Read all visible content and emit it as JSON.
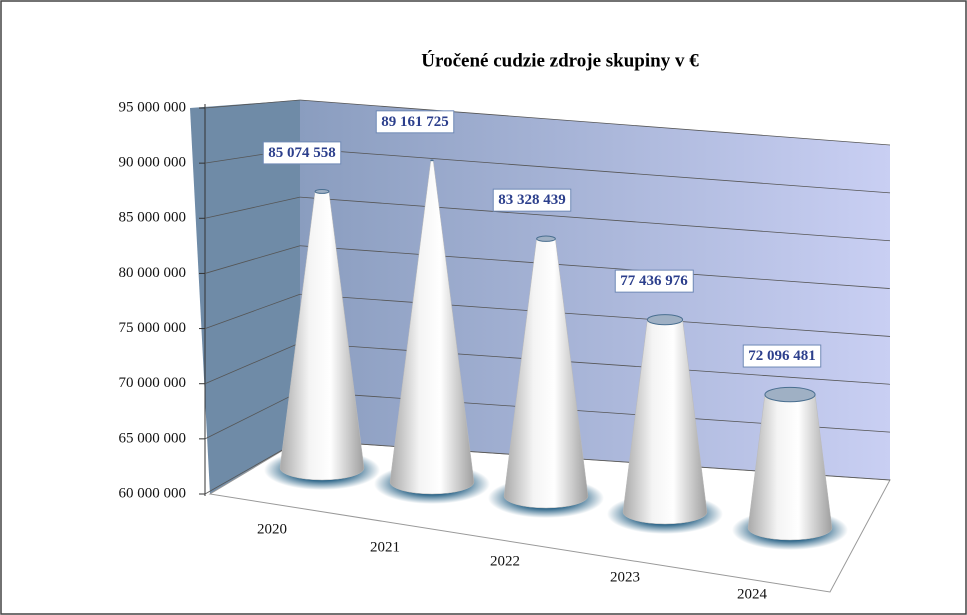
{
  "chart_data": {
    "type": "bar",
    "title": "Úročené cudzie zdroje skupiny  v €",
    "categories": [
      "2020",
      "2021",
      "2022",
      "2023",
      "2024"
    ],
    "values": [
      85074558,
      89161725,
      83328439,
      77436976,
      72096481
    ],
    "value_labels": [
      "85 074 558",
      "89 161 725",
      "83 328 439",
      "77 436 976",
      "72 096 481"
    ],
    "color": "#e6e6e6",
    "ylim": [
      60000000,
      95000000
    ],
    "yticks": [
      {
        "value": 60000000,
        "label": "60 000 000"
      },
      {
        "value": 65000000,
        "label": "65 000 000"
      },
      {
        "value": 70000000,
        "label": "70 000 000"
      },
      {
        "value": 75000000,
        "label": "75 000 000"
      },
      {
        "value": 80000000,
        "label": "80 000 000"
      },
      {
        "value": 85000000,
        "label": "85 000 000"
      },
      {
        "value": 90000000,
        "label": "90 000 000"
      },
      {
        "value": 95000000,
        "label": "95 000 000"
      }
    ],
    "grid": true
  }
}
